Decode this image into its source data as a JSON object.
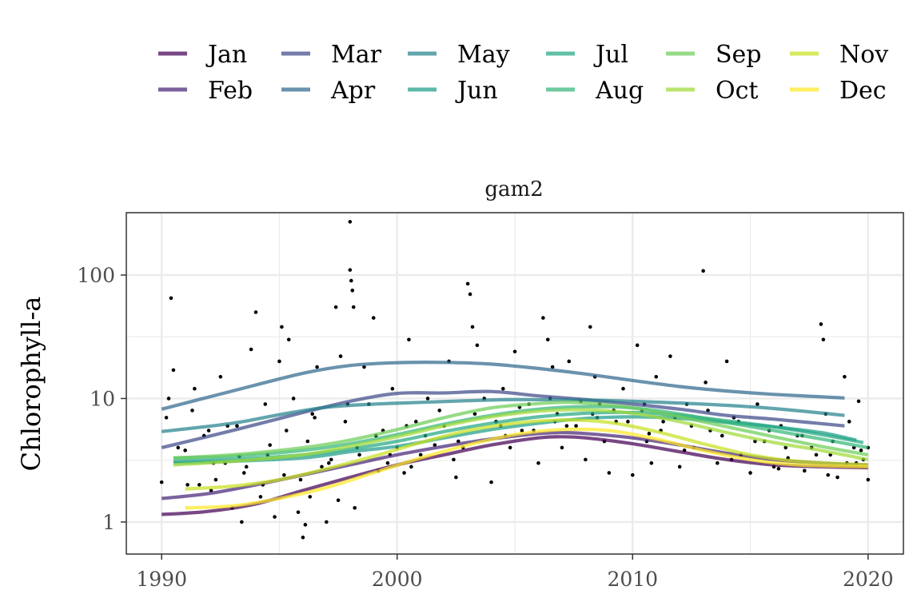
{
  "chart_data": {
    "type": "line",
    "title": "",
    "panel_title": "gam2",
    "xlabel": "",
    "ylabel": "Chlorophyll-a",
    "x_scale": "linear",
    "y_scale": "log10",
    "xlim": [
      1988.5,
      2021.5
    ],
    "ylim": [
      0.55,
      320
    ],
    "x_ticks": [
      1990,
      2000,
      2010,
      2020
    ],
    "x_tick_labels": [
      "1990",
      "2000",
      "2010",
      "2020"
    ],
    "y_ticks": [
      1,
      10,
      100
    ],
    "y_tick_labels": [
      "1",
      "10",
      "100"
    ],
    "grid": true,
    "legend_position": "top",
    "series": [
      {
        "name": "Jan",
        "color": "#440154",
        "x": [
          1990,
          1992,
          1994,
          1996,
          1998,
          2000,
          2002,
          2004,
          2006,
          2007,
          2008,
          2010,
          2012,
          2014,
          2016,
          2018,
          2020
        ],
        "y": [
          1.15,
          1.22,
          1.4,
          1.8,
          2.3,
          2.9,
          3.5,
          4.2,
          4.8,
          4.9,
          4.8,
          4.3,
          3.7,
          3.2,
          2.9,
          2.8,
          2.75
        ]
      },
      {
        "name": "Feb",
        "color": "#482677",
        "x": [
          1990,
          1992,
          1994,
          1996,
          1998,
          2000,
          2002,
          2004,
          2006,
          2007,
          2008,
          2010,
          2012,
          2014,
          2016,
          2018,
          2020
        ],
        "y": [
          1.55,
          1.7,
          2.0,
          2.4,
          2.9,
          3.5,
          4.1,
          4.7,
          5.2,
          5.3,
          5.2,
          4.8,
          4.2,
          3.6,
          3.2,
          3.0,
          2.9
        ]
      },
      {
        "name": "Mar",
        "color": "#3E4A89",
        "x": [
          1990,
          1993,
          1996,
          1998,
          2000,
          2002,
          2004,
          2006,
          2008,
          2010,
          2012,
          2014,
          2016,
          2019
        ],
        "y": [
          4.0,
          5.5,
          7.7,
          9.5,
          11.0,
          11.1,
          11.4,
          10.5,
          9.8,
          9.0,
          8.2,
          7.3,
          6.8,
          6.0
        ]
      },
      {
        "name": "Apr",
        "color": "#31688E",
        "x": [
          1990,
          1993,
          1996,
          1998,
          2000,
          2002,
          2004,
          2006,
          2008,
          2010,
          2012,
          2014,
          2016,
          2019
        ],
        "y": [
          8.2,
          11.5,
          16.0,
          18.5,
          19.5,
          19.6,
          19.0,
          17.5,
          15.8,
          14.0,
          12.5,
          11.5,
          10.8,
          10.1
        ]
      },
      {
        "name": "May",
        "color": "#26828E",
        "x": [
          1990,
          1993,
          1995,
          1997,
          1999,
          2001,
          2003,
          2005,
          2008,
          2010,
          2012,
          2014,
          2016,
          2019
        ],
        "y": [
          5.4,
          6.3,
          7.4,
          8.5,
          9.0,
          9.3,
          9.6,
          9.8,
          9.7,
          9.5,
          9.2,
          8.8,
          8.3,
          7.3
        ]
      },
      {
        "name": "Jun",
        "color": "#1F9E89",
        "x": [
          1990.5,
          1993,
          1996,
          1998,
          2000,
          2002,
          2004,
          2006,
          2008,
          2010,
          2012,
          2014,
          2016,
          2018,
          2019.5
        ],
        "y": [
          3.0,
          3.1,
          3.3,
          3.7,
          4.1,
          4.8,
          5.6,
          6.3,
          6.9,
          7.1,
          6.9,
          6.4,
          5.9,
          5.3,
          4.6
        ]
      },
      {
        "name": "Jul",
        "color": "#23A883",
        "x": [
          1990.5,
          1993,
          1996,
          1998,
          2000,
          2002,
          2004,
          2006,
          2008,
          2010,
          2012,
          2014,
          2016,
          2018,
          2019.8
        ],
        "y": [
          3.1,
          3.2,
          3.5,
          3.9,
          4.5,
          5.4,
          6.3,
          7.1,
          7.6,
          7.7,
          7.3,
          6.6,
          5.9,
          5.1,
          4.4
        ]
      },
      {
        "name": "Aug",
        "color": "#35B779",
        "x": [
          1990.5,
          1993,
          1996,
          1998,
          2000,
          2002,
          2004,
          2006,
          2008,
          2010,
          2012,
          2014,
          2016,
          2018,
          2020
        ],
        "y": [
          3.3,
          3.4,
          3.8,
          4.3,
          5.1,
          6.2,
          7.3,
          8.2,
          8.6,
          8.4,
          7.5,
          6.4,
          5.5,
          4.7,
          4.0
        ]
      },
      {
        "name": "Sep",
        "color": "#6DCD59",
        "x": [
          1990.5,
          1993,
          1996,
          1998,
          2000,
          2002,
          2004,
          2006,
          2007,
          2008,
          2010,
          2012,
          2014,
          2016,
          2018,
          2020
        ],
        "y": [
          3.3,
          3.5,
          4.0,
          4.6,
          5.6,
          7.0,
          8.4,
          9.1,
          9.3,
          9.2,
          8.4,
          7.1,
          5.9,
          4.9,
          4.1,
          3.5
        ]
      },
      {
        "name": "Oct",
        "color": "#A0DA39",
        "x": [
          1990.5,
          1993,
          1996,
          1998,
          2000,
          2002,
          2004,
          2006,
          2008,
          2010,
          2012,
          2014,
          2016,
          2018,
          2020
        ],
        "y": [
          2.9,
          3.1,
          3.5,
          4.1,
          4.9,
          6.0,
          7.1,
          7.9,
          8.1,
          7.6,
          6.5,
          5.3,
          4.4,
          3.8,
          3.2
        ]
      },
      {
        "name": "Nov",
        "color": "#C8E020",
        "x": [
          1991,
          1993,
          1995,
          1997,
          1999,
          2001,
          2003,
          2005,
          2007,
          2009,
          2011,
          2013,
          2015,
          2017,
          2020
        ],
        "y": [
          1.85,
          1.95,
          2.2,
          2.7,
          3.4,
          4.4,
          5.5,
          6.3,
          6.7,
          6.4,
          5.4,
          4.3,
          3.5,
          3.1,
          2.9
        ]
      },
      {
        "name": "Dec",
        "color": "#FDE725",
        "x": [
          1991,
          1993,
          1995,
          1997,
          1999,
          2001,
          2003,
          2005,
          2007,
          2009,
          2011,
          2013,
          2015,
          2017,
          2020
        ],
        "y": [
          1.3,
          1.35,
          1.55,
          1.9,
          2.5,
          3.3,
          4.2,
          5.1,
          5.6,
          5.5,
          4.7,
          3.8,
          3.2,
          2.9,
          2.8
        ]
      }
    ],
    "scatter": {
      "color": "#000000",
      "x": [
        1990.0,
        1990.2,
        1990.4,
        1990.5,
        1990.7,
        1991.0,
        1991.3,
        1991.4,
        1991.6,
        1992.0,
        1992.3,
        1992.5,
        1992.7,
        1993.0,
        1993.2,
        1993.4,
        1993.5,
        1993.8,
        1994.0,
        1994.2,
        1994.4,
        1994.5,
        1994.8,
        1995.0,
        1995.1,
        1995.2,
        1995.4,
        1995.6,
        1995.8,
        1996.0,
        1996.1,
        1996.2,
        1996.4,
        1996.6,
        1996.8,
        1997.0,
        1997.2,
        1997.4,
        1997.6,
        1997.8,
        1998.0,
        1998.0,
        1998.05,
        1998.1,
        1998.15,
        1998.2,
        1998.4,
        1998.6,
        1998.8,
        1999.0,
        1999.2,
        1999.4,
        1999.6,
        1999.8,
        2000.0,
        2000.3,
        2000.5,
        2000.8,
        2001.0,
        2001.3,
        2001.6,
        2002.0,
        2002.2,
        2002.5,
        2002.8,
        2003.0,
        2003.1,
        2003.2,
        2003.4,
        2003.7,
        2004.0,
        2004.2,
        2004.5,
        2004.8,
        2005.0,
        2005.3,
        2005.6,
        2006.0,
        2006.2,
        2006.4,
        2006.6,
        2006.8,
        2007.0,
        2007.3,
        2007.6,
        2008.0,
        2008.2,
        2008.4,
        2008.6,
        2008.8,
        2009.0,
        2009.3,
        2009.6,
        2010.0,
        2010.2,
        2010.4,
        2010.6,
        2010.8,
        2011.0,
        2011.3,
        2011.6,
        2012.0,
        2012.3,
        2012.6,
        2013.0,
        2013.1,
        2013.3,
        2013.6,
        2014.0,
        2014.3,
        2014.6,
        2015.0,
        2015.3,
        2015.6,
        2016.0,
        2016.3,
        2016.6,
        2017.0,
        2017.3,
        2017.6,
        2018.0,
        2018.1,
        2018.2,
        2018.4,
        2018.7,
        2019.0,
        2019.2,
        2019.4,
        2019.6,
        2019.8,
        2020.0,
        2020.0,
        1990.3,
        1991.1,
        1991.8,
        1992.2,
        1992.8,
        1993.6,
        1994.6,
        1995.3,
        1995.9,
        1996.5,
        1997.1,
        1997.9,
        1998.3,
        1999.1,
        1999.7,
        2000.4,
        2001.2,
        2001.8,
        2002.6,
        2003.3,
        2004.4,
        2005.2,
        2005.8,
        2006.5,
        2007.2,
        2007.8,
        2008.5,
        2009.2,
        2009.8,
        2010.5,
        2011.2,
        2011.8,
        2012.5,
        2013.2,
        2013.8,
        2014.5,
        2015.2,
        2015.8,
        2016.5,
        2017.2,
        2017.8,
        2018.5,
        2019.1,
        2019.7,
        1992.1,
        1993.3,
        1994.3,
        1996.3,
        1997.5,
        2000.6,
        2002.4,
        2004.6,
        2006.7,
        2008.3,
        2010.7,
        2012.2,
        2014.2,
        2016.2,
        2018.3,
        2019.5
      ],
      "y": [
        2.1,
        7.0,
        65.0,
        17.0,
        4.0,
        3.8,
        8.0,
        12.0,
        2.0,
        5.5,
        2.2,
        15.0,
        3.0,
        1.3,
        6.0,
        1.0,
        2.5,
        25.0,
        50.0,
        1.6,
        9.0,
        3.5,
        1.1,
        20.0,
        38.0,
        2.4,
        30.0,
        10.0,
        1.2,
        0.75,
        0.95,
        4.5,
        7.5,
        18.0,
        2.8,
        1.0,
        3.2,
        55.0,
        22.0,
        6.5,
        270.0,
        110.0,
        90.0,
        75.0,
        55.0,
        1.3,
        3.5,
        18.0,
        9.0,
        45.0,
        2.6,
        5.5,
        3.0,
        12.0,
        4.0,
        2.5,
        30.0,
        6.5,
        3.5,
        10.0,
        4.2,
        6.0,
        20.0,
        2.3,
        4.0,
        85.0,
        70.0,
        38.0,
        27.0,
        10.0,
        2.1,
        6.5,
        12.0,
        4.0,
        24.0,
        5.5,
        9.0,
        3.0,
        45.0,
        30.0,
        18.0,
        7.5,
        4.0,
        20.0,
        6.0,
        3.2,
        38.0,
        15.0,
        9.0,
        4.5,
        2.5,
        6.5,
        12.0,
        2.4,
        27.0,
        8.0,
        4.5,
        3.0,
        15.0,
        6.5,
        22.0,
        2.8,
        9.0,
        4.0,
        108.0,
        13.5,
        5.5,
        3.0,
        20.0,
        7.0,
        3.5,
        2.5,
        9.0,
        4.5,
        2.8,
        6.0,
        3.3,
        5.0,
        2.6,
        4.0,
        40.0,
        30.0,
        7.5,
        3.5,
        2.3,
        15.0,
        6.5,
        4.0,
        9.5,
        3.2,
        2.2,
        4.0,
        10.0,
        2.0,
        5.0,
        3.0,
        6.0,
        2.8,
        4.2,
        5.5,
        2.2,
        7.0,
        3.0,
        9.0,
        4.0,
        5.0,
        3.5,
        6.0,
        5.0,
        8.0,
        4.5,
        7.5,
        6.0,
        8.5,
        5.5,
        10.0,
        6.0,
        9.5,
        7.0,
        8.0,
        6.5,
        9.0,
        5.5,
        7.0,
        6.0,
        8.0,
        5.0,
        6.5,
        4.5,
        5.5,
        4.0,
        5.0,
        3.5,
        4.5,
        3.0,
        3.8,
        1.8,
        3.4,
        2.0,
        1.6,
        1.5,
        2.8,
        3.2,
        5.0,
        6.5,
        7.5,
        5.2,
        3.8,
        3.2,
        2.7,
        2.4,
        3.0
      ]
    }
  }
}
